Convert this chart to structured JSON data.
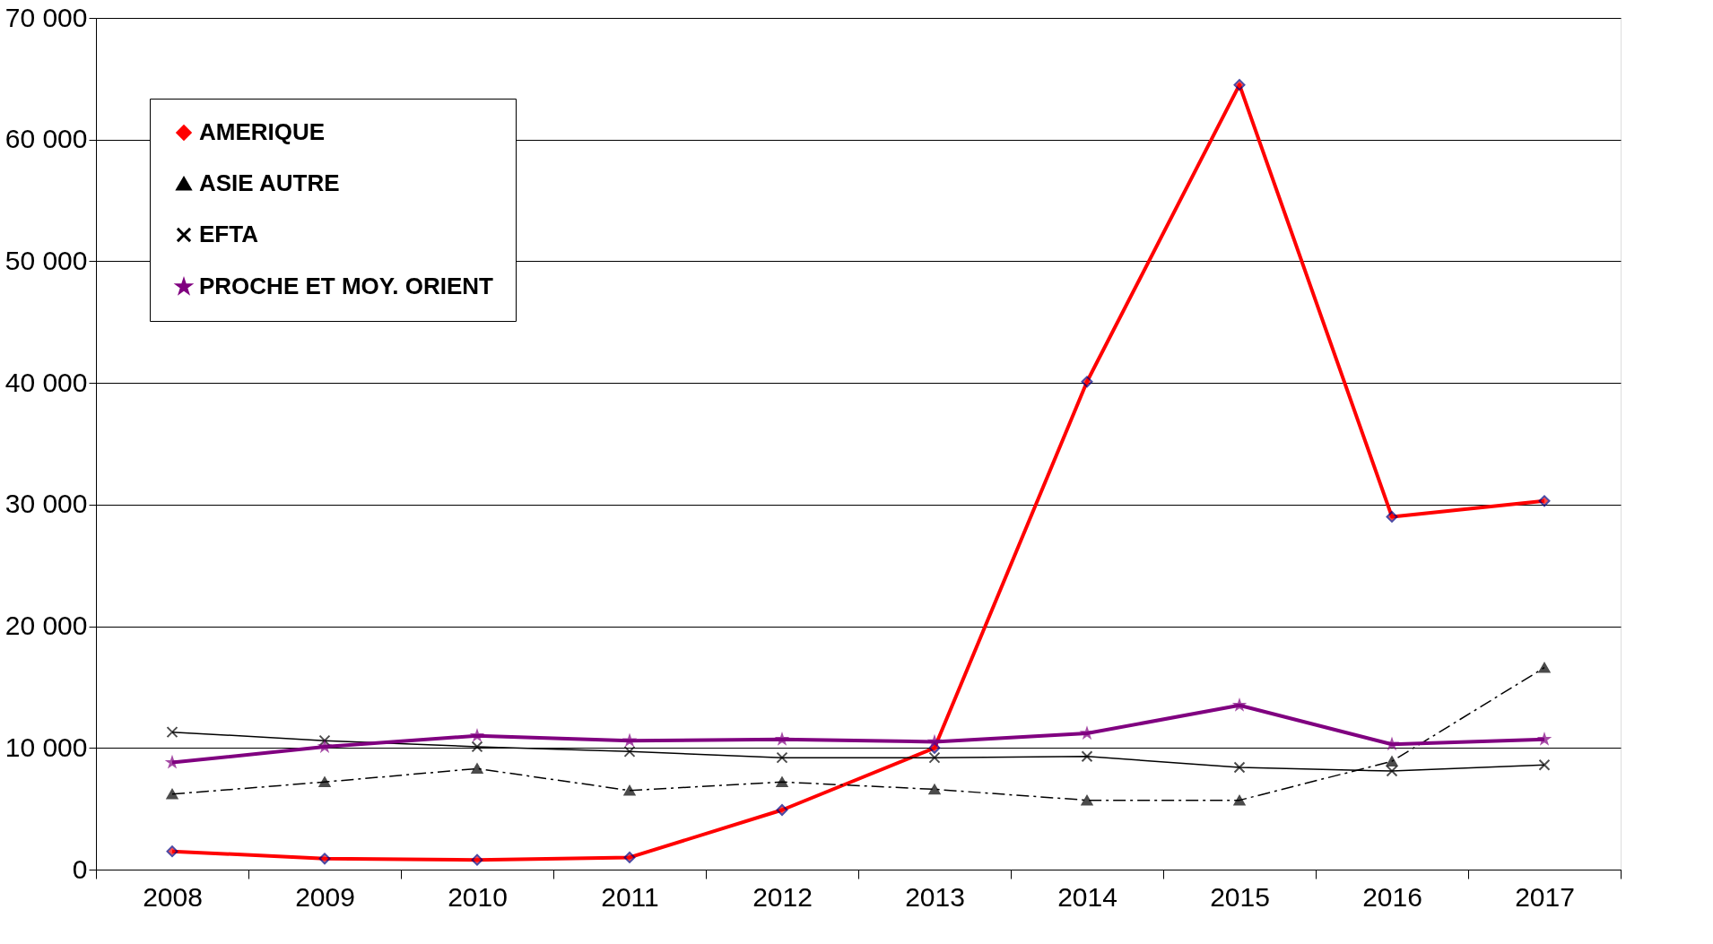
{
  "chart_data": {
    "type": "line",
    "categories": [
      "2008",
      "2009",
      "2010",
      "2011",
      "2012",
      "2013",
      "2014",
      "2015",
      "2016",
      "2017"
    ],
    "ylim": [
      0,
      70000
    ],
    "yticks": [
      {
        "value": 0,
        "label": "0"
      },
      {
        "value": 10000,
        "label": "10 000"
      },
      {
        "value": 20000,
        "label": "20 000"
      },
      {
        "value": 30000,
        "label": "30 000"
      },
      {
        "value": 40000,
        "label": "40 000"
      },
      {
        "value": 50000,
        "label": "50 000"
      },
      {
        "value": 60000,
        "label": "60 000"
      },
      {
        "value": 70000,
        "label": "70 000"
      }
    ],
    "grid": "y",
    "legend": "top left",
    "series": [
      {
        "name": "AMERIQUE",
        "color": "#ff0000",
        "marker": "diamond",
        "line_style": "solid",
        "values": [
          1500,
          900,
          800,
          1000,
          4900,
          10000,
          40100,
          64500,
          29000,
          30300
        ]
      },
      {
        "name": "ASIE AUTRE",
        "color": "#000000",
        "marker": "triangle",
        "line_style": "dashed",
        "values": [
          6200,
          7200,
          8300,
          6500,
          7200,
          6600,
          5700,
          5700,
          8900,
          16600
        ]
      },
      {
        "name": "EFTA",
        "color": "#000000",
        "marker": "cross",
        "line_style": "solid",
        "values": [
          11300,
          10600,
          10100,
          9700,
          9200,
          9200,
          9300,
          8400,
          8100,
          8600
        ]
      },
      {
        "name": "PROCHE ET MOY. ORIENT",
        "color": "#800080",
        "marker": "star",
        "line_style": "solid",
        "values": [
          8800,
          10100,
          11000,
          10600,
          10700,
          10500,
          11200,
          13500,
          10300,
          10700
        ]
      }
    ]
  }
}
